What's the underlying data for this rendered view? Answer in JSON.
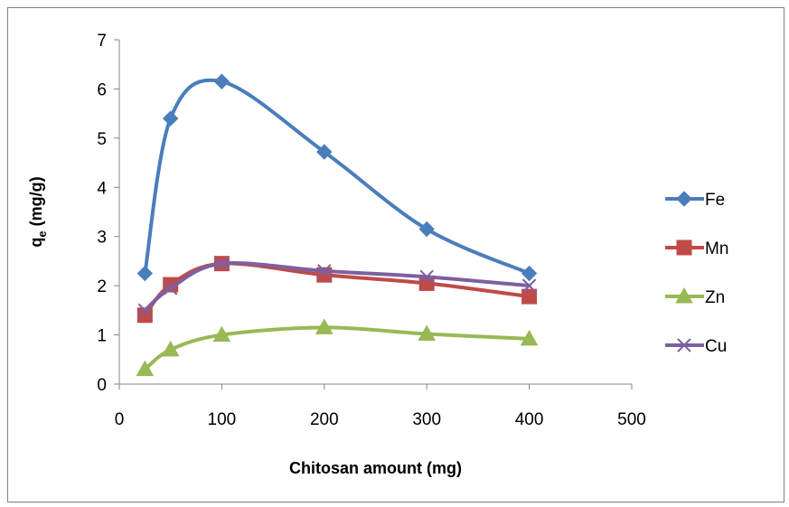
{
  "chart_data": {
    "type": "line",
    "smooth": true,
    "xlabel": "Chitosan amount (mg)",
    "ylabel_main": "q",
    "ylabel_sub": "e",
    "ylabel_tail": " (mg/g)",
    "xlim": [
      0,
      500
    ],
    "ylim": [
      0,
      7
    ],
    "xticks": [
      0,
      100,
      200,
      300,
      400,
      500
    ],
    "yticks": [
      0,
      1,
      2,
      3,
      4,
      5,
      6,
      7
    ],
    "grid": false,
    "legend_position": "right",
    "x": [
      25,
      50,
      100,
      200,
      300,
      400
    ],
    "series": [
      {
        "name": "Fe",
        "marker": "diamond",
        "color": "#4a7ebb",
        "values": [
          2.25,
          5.4,
          6.15,
          4.72,
          3.15,
          2.25
        ]
      },
      {
        "name": "Mn",
        "marker": "square",
        "color": "#be4b48",
        "values": [
          1.4,
          2.02,
          2.45,
          2.22,
          2.05,
          1.78
        ]
      },
      {
        "name": "Zn",
        "marker": "triangle",
        "color": "#98b954",
        "values": [
          0.3,
          0.7,
          1.0,
          1.15,
          1.02,
          0.92
        ]
      },
      {
        "name": "Cu",
        "marker": "x",
        "color": "#7d60a0",
        "values": [
          1.5,
          1.95,
          2.45,
          2.3,
          2.18,
          2.0
        ]
      }
    ]
  }
}
